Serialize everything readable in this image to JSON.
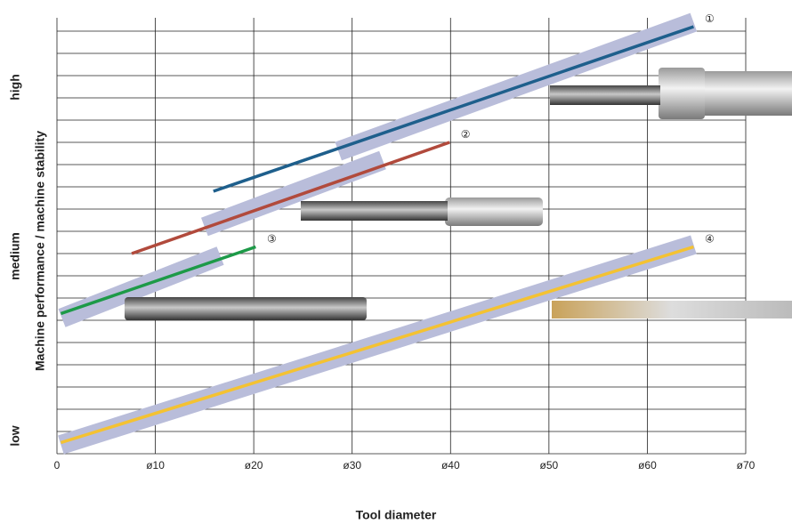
{
  "chart_data": {
    "type": "line",
    "y_labels": [
      "low",
      "medium",
      "high"
    ],
    "ylabel": "Machine performance / machine stability",
    "xlabel": "Tool diameter",
    "xlim": [
      0,
      70
    ],
    "ylim": [
      0,
      19.6
    ],
    "xticks": [
      0,
      {
        "value": 10,
        "label": "ø10"
      },
      {
        "value": 20,
        "label": "ø20"
      },
      {
        "value": 30,
        "label": "ø30"
      },
      {
        "value": 40,
        "label": "ø40"
      },
      {
        "value": 50,
        "label": "ø50"
      },
      {
        "value": 60,
        "label": "ø60"
      },
      {
        "value": 70,
        "label": "ø70"
      }
    ],
    "grid": true,
    "band_color": "#b9bdda",
    "series": [
      {
        "name": "①",
        "color": "#1e5f8c",
        "x": [
          15.9,
          64.7
        ],
        "values": [
          11.8,
          19.2
        ],
        "range": {
          "x": [
            28.6,
            64.7
          ],
          "values": [
            13.6,
            19.4
          ]
        }
      },
      {
        "name": "②",
        "color": "#b14a3c",
        "x": [
          7.6,
          39.9
        ],
        "values": [
          9.0,
          14.0
        ],
        "range": {
          "x": [
            15.0,
            33.1
          ],
          "values": [
            10.2,
            13.2
          ]
        }
      },
      {
        "name": "③",
        "color": "#1d9a48",
        "x": [
          0.4,
          20.2
        ],
        "values": [
          6.3,
          9.3
        ],
        "range": {
          "x": [
            0.5,
            16.6
          ],
          "values": [
            6.1,
            8.9
          ]
        }
      },
      {
        "name": "④",
        "color": "#f4c232",
        "x": [
          0.4,
          64.7
        ],
        "values": [
          0.5,
          9.3
        ],
        "range": {
          "x": [
            0.4,
            64.7
          ],
          "values": [
            0.4,
            9.4
          ]
        }
      }
    ]
  }
}
